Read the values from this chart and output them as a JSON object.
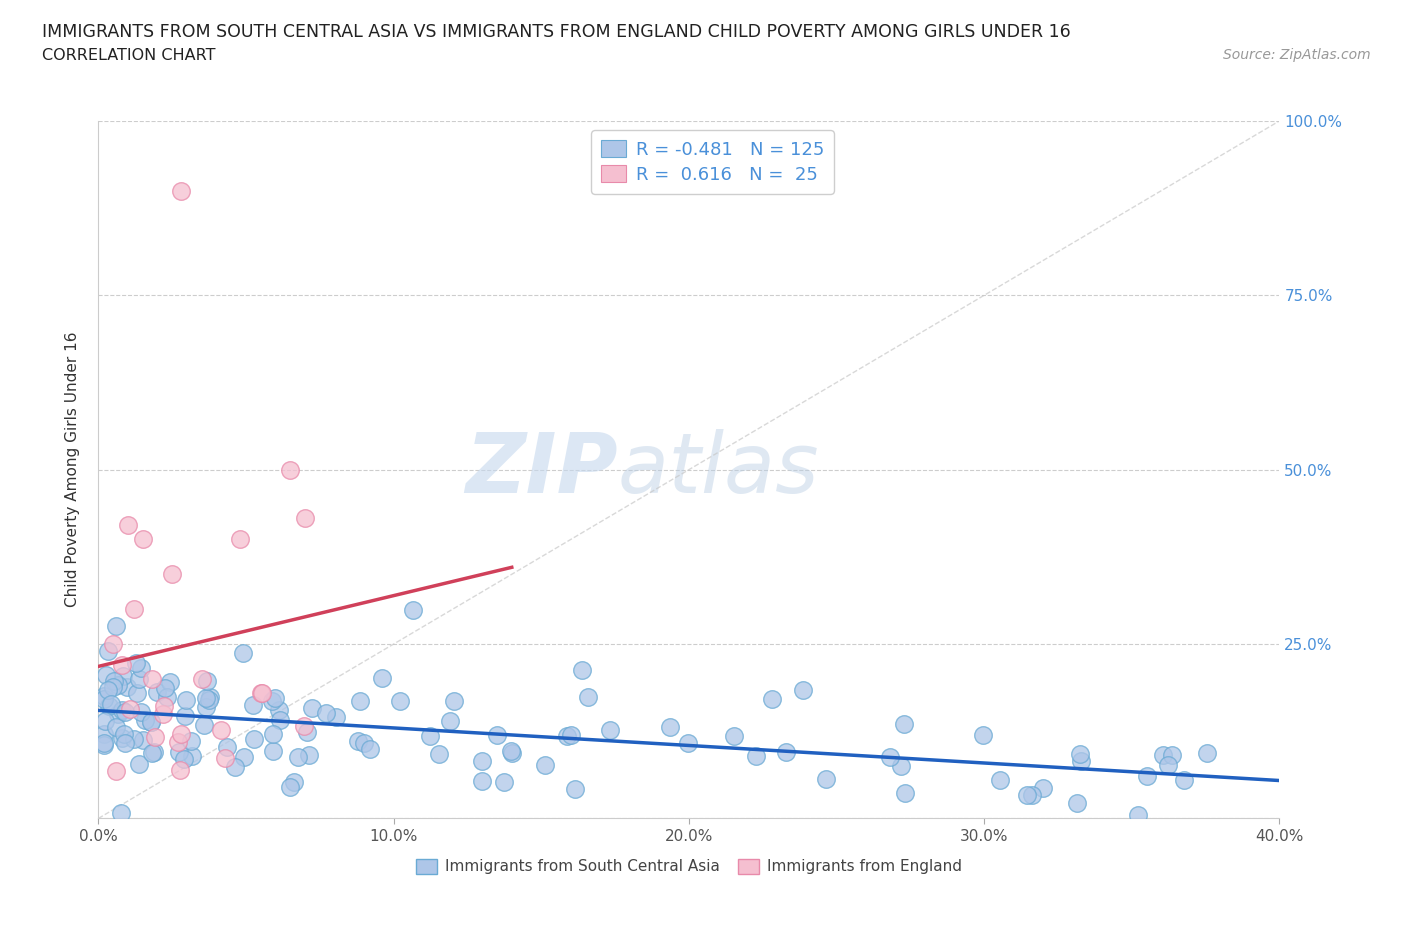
{
  "title": "IMMIGRANTS FROM SOUTH CENTRAL ASIA VS IMMIGRANTS FROM ENGLAND CHILD POVERTY AMONG GIRLS UNDER 16",
  "subtitle": "CORRELATION CHART",
  "source": "Source: ZipAtlas.com",
  "ylabel": "Child Poverty Among Girls Under 16",
  "xlim": [
    0.0,
    0.4
  ],
  "ylim": [
    0.0,
    1.0
  ],
  "xticks": [
    0.0,
    0.1,
    0.2,
    0.3,
    0.4
  ],
  "xtick_labels": [
    "0.0%",
    "10.0%",
    "20.0%",
    "30.0%",
    "40.0%"
  ],
  "yticks": [
    0.0,
    0.25,
    0.5,
    0.75,
    1.0
  ],
  "ytick_labels_right": [
    "",
    "25.0%",
    "50.0%",
    "75.0%",
    "100.0%"
  ],
  "blue_color": "#aec6e8",
  "blue_edge": "#6aaad4",
  "pink_color": "#f5bfd0",
  "pink_edge": "#e88aaa",
  "blue_line_color": "#2060c0",
  "pink_line_color": "#d0405a",
  "ref_line_color": "#c8c8c8",
  "R_blue": -0.481,
  "N_blue": 125,
  "R_pink": 0.616,
  "N_pink": 25,
  "watermark_zip": "ZIP",
  "watermark_atlas": "atlas",
  "grid_color": "#c8c8c8",
  "tick_color": "#4a90d9",
  "background_color": "#ffffff"
}
